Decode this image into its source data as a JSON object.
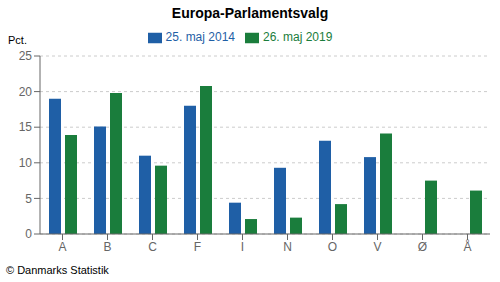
{
  "chart_data": {
    "type": "bar",
    "title": "Europa-Parlamentsvalg",
    "ylabel": "Pct.",
    "annotations": [
      "© Danmarks Statistik"
    ],
    "categories": [
      "A",
      "B",
      "C",
      "F",
      "I",
      "N",
      "O",
      "V",
      "Ø",
      "Å"
    ],
    "series": [
      {
        "name": "25. maj 2014",
        "color": "#1f5fa6",
        "values": [
          19.0,
          15.1,
          11.0,
          18.0,
          4.4,
          9.3,
          13.1,
          10.8,
          0.0,
          0.0
        ]
      },
      {
        "name": "26. maj 2019",
        "color": "#1a7d3c",
        "values": [
          13.9,
          19.8,
          9.6,
          20.8,
          2.1,
          2.3,
          4.2,
          14.1,
          7.5,
          6.1
        ]
      }
    ],
    "ylim": [
      0,
      25
    ],
    "yticks": [
      0,
      5,
      10,
      15,
      20,
      25
    ],
    "grid": true,
    "legend": "top"
  }
}
